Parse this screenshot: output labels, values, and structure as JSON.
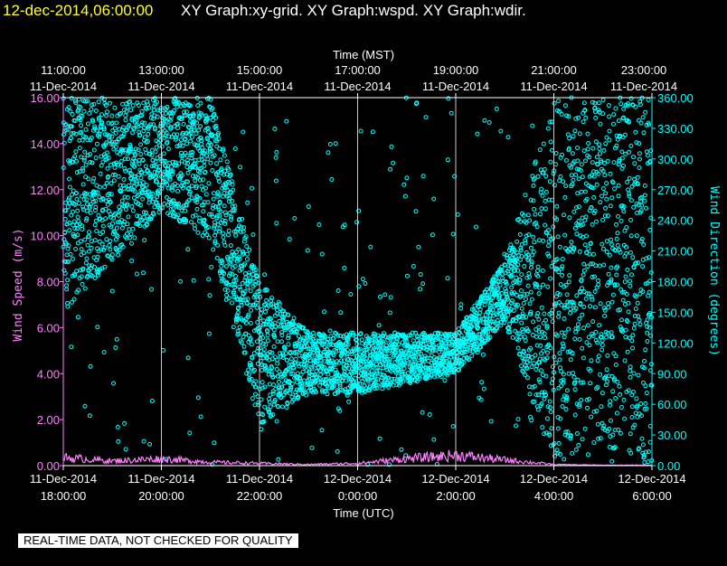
{
  "header": {
    "date_text": "12-dec-2014,06:00:00",
    "graph_titles": "XY Graph:xy-grid.  XY Graph:wspd.  XY Graph:wdir."
  },
  "disclaimer": "REAL-TIME DATA, NOT CHECKED FOR QUALITY",
  "colors": {
    "background": "#000000",
    "wind_speed": "#ff80ff",
    "wind_direction": "#00ffff",
    "date_text": "#ffff33",
    "grid": "#c8c8c8"
  },
  "chart_data": {
    "type": "scatter",
    "grid": true,
    "top_axis": {
      "title": "Time (MST)",
      "ticks": [
        {
          "time": "11:00:00",
          "date": "11-Dec-2014"
        },
        {
          "time": "13:00:00",
          "date": "11-Dec-2014"
        },
        {
          "time": "15:00:00",
          "date": "11-Dec-2014"
        },
        {
          "time": "17:00:00",
          "date": "11-Dec-2014"
        },
        {
          "time": "19:00:00",
          "date": "11-Dec-2014"
        },
        {
          "time": "21:00:00",
          "date": "11-Dec-2014"
        },
        {
          "time": "23:00:00",
          "date": "11-Dec-2014"
        }
      ]
    },
    "bottom_axis": {
      "title": "Time (UTC)",
      "range_utc": [
        "2014-12-11 18:00:00",
        "2014-12-12 06:00:00"
      ],
      "ticks": [
        {
          "date": "11-Dec-2014",
          "time": "18:00:00"
        },
        {
          "date": "11-Dec-2014",
          "time": "20:00:00"
        },
        {
          "date": "11-Dec-2014",
          "time": "22:00:00"
        },
        {
          "date": "12-Dec-2014",
          "time": "0:00:00"
        },
        {
          "date": "12-Dec-2014",
          "time": "2:00:00"
        },
        {
          "date": "12-Dec-2014",
          "time": "4:00:00"
        },
        {
          "date": "12-Dec-2014",
          "time": "6:00:00"
        }
      ]
    },
    "left_axis": {
      "label": "Wind Speed (m/s)",
      "range": [
        0,
        16
      ],
      "ticks": [
        "0.00",
        "2.00",
        "4.00",
        "6.00",
        "8.00",
        "10.00",
        "12.00",
        "14.00",
        "16.00"
      ]
    },
    "right_axis": {
      "label": "Wind Direction (degrees)",
      "range": [
        0,
        360
      ],
      "ticks": [
        "0.00",
        "30.00",
        "60.00",
        "90.00",
        "120.00",
        "150.00",
        "180.00",
        "210.00",
        "240.00",
        "270.00",
        "300.00",
        "330.00",
        "360.00"
      ]
    },
    "series": [
      {
        "key": "wspd",
        "axis": "left",
        "style": "line",
        "hours_utc": [
          18,
          19,
          20,
          21,
          22,
          23,
          24,
          25,
          26,
          27,
          28,
          29,
          30
        ],
        "values": [
          0.35,
          0.2,
          0.3,
          0.15,
          0.1,
          0.05,
          0.1,
          0.3,
          0.45,
          0.25,
          0.05,
          0.02,
          0.02
        ]
      },
      {
        "key": "wdir",
        "axis": "right",
        "style": "scatter",
        "hours_utc": [
          18,
          19,
          20,
          21,
          22,
          23,
          24,
          25,
          26,
          27,
          28,
          29,
          30
        ],
        "band_low": [
          150,
          200,
          250,
          220,
          40,
          70,
          70,
          80,
          90,
          140,
          0,
          20,
          0
        ],
        "band_high": [
          360,
          360,
          360,
          360,
          180,
          130,
          130,
          130,
          130,
          200,
          360,
          360,
          360
        ]
      }
    ]
  }
}
